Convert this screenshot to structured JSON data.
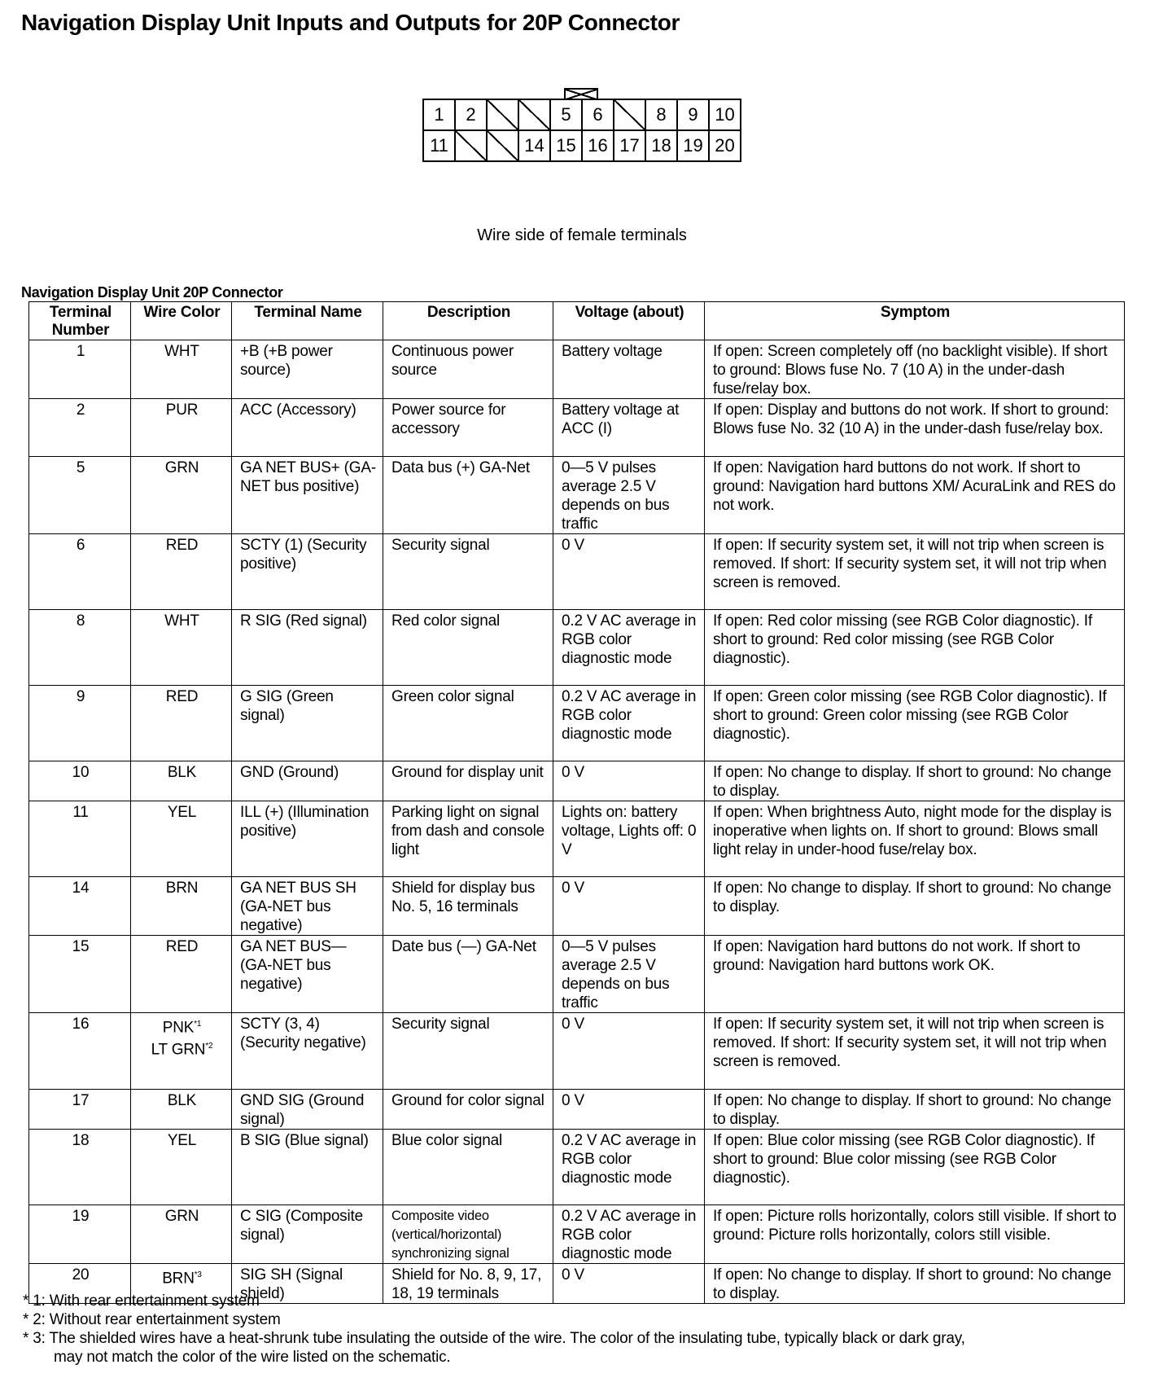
{
  "title": "Navigation Display Unit Inputs and Outputs for 20P Connector",
  "connector": {
    "row1": [
      "1",
      "2",
      "",
      "",
      "5",
      "6",
      "",
      "8",
      "9",
      "10"
    ],
    "row2": [
      "11",
      "",
      "",
      "14",
      "15",
      "16",
      "17",
      "18",
      "19",
      "20"
    ],
    "caption": "Wire side of female terminals"
  },
  "table_title": "Navigation Display Unit 20P Connector",
  "headers": [
    "Terminal Number",
    "Wire Color",
    "Terminal Name",
    "Description",
    "Voltage (about)",
    "Symptom"
  ],
  "rows": [
    {
      "terminal": "1",
      "wire": "WHT",
      "wire_note": "",
      "wire2": "",
      "wire2_note": "",
      "name": "+B (+B power source)",
      "desc": "Continuous power source",
      "volt": "Battery voltage",
      "symptom": "If open: Screen completely off (no backlight visible). If short to ground: Blows fuse No. 7 (10 A) in the under-dash fuse/relay box."
    },
    {
      "terminal": "2",
      "wire": "PUR",
      "wire_note": "",
      "wire2": "",
      "wire2_note": "",
      "name": "ACC (Accessory)",
      "desc": "Power source for accessory",
      "volt": "Battery voltage at ACC (I)",
      "symptom": "If open: Display and buttons do not work. If short to ground: Blows fuse No. 32 (10 A) in the under-dash fuse/relay box."
    },
    {
      "terminal": "5",
      "wire": "GRN",
      "wire_note": "",
      "wire2": "",
      "wire2_note": "",
      "name": "GA NET BUS+ (GA-NET bus positive)",
      "desc": "Data bus (+) GA-Net",
      "volt": "0—5 V pulses average 2.5 V depends on bus traffic",
      "symptom": "If open: Navigation hard buttons do not work. If short to ground: Navigation hard buttons XM/ AcuraLink and RES do not work."
    },
    {
      "terminal": "6",
      "wire": "RED",
      "wire_note": "",
      "wire2": "",
      "wire2_note": "",
      "name": "SCTY (1) (Security positive)",
      "desc": "Security signal",
      "volt": "0 V",
      "symptom": "If open: If security system set, it will not trip when screen is removed. If short: If security system set, it will not trip when screen is removed."
    },
    {
      "terminal": "8",
      "wire": "WHT",
      "wire_note": "",
      "wire2": "",
      "wire2_note": "",
      "name": "R SIG (Red signal)",
      "desc": "Red color signal",
      "volt": "0.2 V AC average in RGB color diagnostic mode",
      "symptom": "If open: Red color missing (see RGB Color diagnostic). If short to ground: Red color missing (see RGB Color diagnostic)."
    },
    {
      "terminal": "9",
      "wire": "RED",
      "wire_note": "",
      "wire2": "",
      "wire2_note": "",
      "name": "G SIG (Green signal)",
      "desc": "Green color signal",
      "volt": "0.2 V AC average in RGB color diagnostic mode",
      "symptom": "If open: Green color missing (see RGB Color diagnostic). If short to ground: Green color missing (see RGB Color diagnostic)."
    },
    {
      "terminal": "10",
      "wire": "BLK",
      "wire_note": "",
      "wire2": "",
      "wire2_note": "",
      "name": "GND (Ground)",
      "desc": "Ground for display unit",
      "volt": "0 V",
      "symptom": "If open: No change to display. If short to ground: No change to display."
    },
    {
      "terminal": "11",
      "wire": "YEL",
      "wire_note": "",
      "wire2": "",
      "wire2_note": "",
      "name": "ILL (+) (Illumination positive)",
      "desc": "Parking light on signal from dash and console light",
      "volt": "Lights on: battery voltage, Lights off: 0 V",
      "symptom": "If open: When brightness Auto, night mode for the display is inoperative when lights on. If short to ground: Blows small light relay in under-hood fuse/relay box."
    },
    {
      "terminal": "14",
      "wire": "BRN",
      "wire_note": "",
      "wire2": "",
      "wire2_note": "",
      "name": "GA NET BUS SH (GA-NET bus negative)",
      "desc": "Shield for display bus No. 5, 16 terminals",
      "volt": "0 V",
      "symptom": "If open: No change to display. If short to ground: No change to display."
    },
    {
      "terminal": "15",
      "wire": "RED",
      "wire_note": "",
      "wire2": "",
      "wire2_note": "",
      "name": "GA NET BUS— (GA-NET bus negative)",
      "desc": "Date bus (—) GA-Net",
      "volt": "0—5 V pulses average 2.5 V depends on bus traffic",
      "symptom": "If open: Navigation hard buttons do not work. If short to ground: Navigation hard buttons work OK."
    },
    {
      "terminal": "16",
      "wire": "PNK",
      "wire_note": "*1",
      "wire2": "LT GRN",
      "wire2_note": "*2",
      "name": "SCTY (3, 4) (Security negative)",
      "desc": "Security signal",
      "volt": "0 V",
      "symptom": "If open: If security system set, it will not trip when screen is removed. If short: If security system set, it will not trip when screen is removed."
    },
    {
      "terminal": "17",
      "wire": "BLK",
      "wire_note": "",
      "wire2": "",
      "wire2_note": "",
      "name": "GND SIG (Ground signal)",
      "desc": "Ground for color signal",
      "volt": "0 V",
      "symptom": "If open: No change to display. If short to ground: No change to display."
    },
    {
      "terminal": "18",
      "wire": "YEL",
      "wire_note": "",
      "wire2": "",
      "wire2_note": "",
      "name": "B SIG (Blue signal)",
      "desc": "Blue color signal",
      "volt": "0.2 V AC average in RGB color diagnostic mode",
      "symptom": "If open: Blue color missing (see RGB Color diagnostic). If short to ground: Blue color missing (see RGB Color diagnostic)."
    },
    {
      "terminal": "19",
      "wire": "GRN",
      "wire_note": "",
      "wire2": "",
      "wire2_note": "",
      "name": "C SIG (Composite signal)",
      "desc": "Composite video (vertical/horizontal) synchronizing signal",
      "volt": "0.2 V AC average in RGB color diagnostic mode",
      "symptom": "If open: Picture rolls horizontally, colors still visible. If short to ground: Picture rolls horizontally, colors still visible."
    },
    {
      "terminal": "20",
      "wire": "BRN",
      "wire_note": "*3",
      "wire2": "",
      "wire2_note": "",
      "name": "SIG SH (Signal shield)",
      "desc": "Shield for No. 8, 9, 17, 18, 19 terminals",
      "volt": "0 V",
      "symptom": "If open: No change to display. If short to ground: No change to display."
    }
  ],
  "footnotes": [
    "* 1: With rear entertainment system",
    "* 2: Without rear entertainment system",
    "* 3: The shielded wires have a heat-shrunk tube insulating the outside of the wire. The color of the insulating tube, typically black or dark gray,",
    "may not match the color of the wire listed on the schematic."
  ]
}
